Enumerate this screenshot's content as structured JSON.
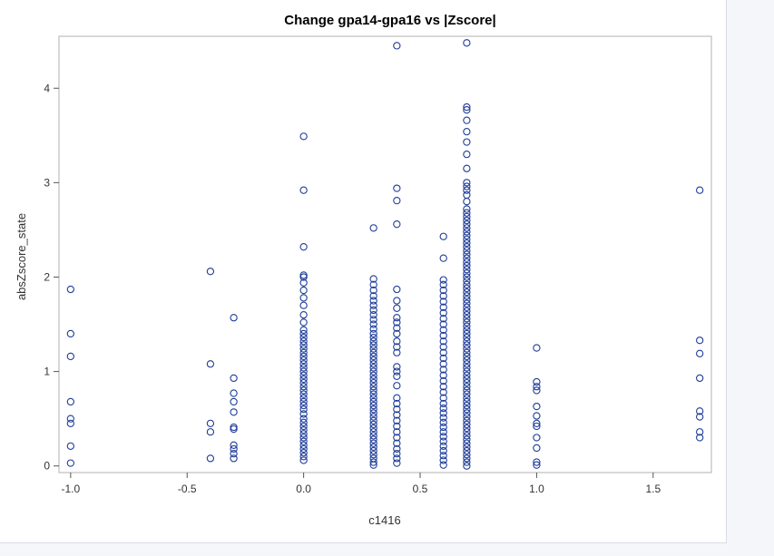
{
  "chart_data": {
    "type": "scatter",
    "title": "Change gpa14-gpa16 vs |Zscore|",
    "xlabel": "c1416",
    "ylabel": "absZscore_state",
    "xlim": [
      -1.05,
      1.75
    ],
    "ylim": [
      -0.07,
      4.55
    ],
    "xticks": [
      -1.0,
      -0.5,
      0.0,
      0.5,
      1.0,
      1.5
    ],
    "xtick_labels": [
      "-1.0",
      "-0.5",
      "0.0",
      "0.5",
      "1.0",
      "1.5"
    ],
    "yticks": [
      0,
      1,
      2,
      3,
      4
    ],
    "ytick_labels": [
      "0",
      "1",
      "2",
      "3",
      "4"
    ],
    "grid": false,
    "marker": "open-circle",
    "marker_color": "#1f3d99",
    "series": [
      {
        "points": [
          [
            -1.0,
            0.03
          ],
          [
            -1.0,
            0.21
          ],
          [
            -1.0,
            0.45
          ],
          [
            -1.0,
            0.5
          ],
          [
            -1.0,
            0.68
          ],
          [
            -1.0,
            1.16
          ],
          [
            -1.0,
            1.4
          ],
          [
            -1.0,
            1.87
          ],
          [
            -0.4,
            0.08
          ],
          [
            -0.4,
            0.36
          ],
          [
            -0.4,
            0.45
          ],
          [
            -0.4,
            1.08
          ],
          [
            -0.4,
            2.06
          ],
          [
            -0.3,
            0.08
          ],
          [
            -0.3,
            0.13
          ],
          [
            -0.3,
            0.18
          ],
          [
            -0.3,
            0.22
          ],
          [
            -0.3,
            0.39
          ],
          [
            -0.3,
            0.41
          ],
          [
            -0.3,
            0.57
          ],
          [
            -0.3,
            0.68
          ],
          [
            -0.3,
            0.77
          ],
          [
            -0.3,
            0.93
          ],
          [
            -0.3,
            1.57
          ],
          [
            0.0,
            0.06
          ],
          [
            0.0,
            0.1
          ],
          [
            0.0,
            0.14
          ],
          [
            0.0,
            0.18
          ],
          [
            0.0,
            0.22
          ],
          [
            0.0,
            0.26
          ],
          [
            0.0,
            0.3
          ],
          [
            0.0,
            0.34
          ],
          [
            0.0,
            0.38
          ],
          [
            0.0,
            0.42
          ],
          [
            0.0,
            0.46
          ],
          [
            0.0,
            0.5
          ],
          [
            0.0,
            0.55
          ],
          [
            0.0,
            0.6
          ],
          [
            0.0,
            0.64
          ],
          [
            0.0,
            0.68
          ],
          [
            0.0,
            0.72
          ],
          [
            0.0,
            0.76
          ],
          [
            0.0,
            0.8
          ],
          [
            0.0,
            0.84
          ],
          [
            0.0,
            0.88
          ],
          [
            0.0,
            0.92
          ],
          [
            0.0,
            0.96
          ],
          [
            0.0,
            1.0
          ],
          [
            0.0,
            1.04
          ],
          [
            0.0,
            1.08
          ],
          [
            0.0,
            1.12
          ],
          [
            0.0,
            1.16
          ],
          [
            0.0,
            1.2
          ],
          [
            0.0,
            1.24
          ],
          [
            0.0,
            1.28
          ],
          [
            0.0,
            1.32
          ],
          [
            0.0,
            1.36
          ],
          [
            0.0,
            1.4
          ],
          [
            0.0,
            1.44
          ],
          [
            0.0,
            1.52
          ],
          [
            0.0,
            1.6
          ],
          [
            0.0,
            1.7
          ],
          [
            0.0,
            1.78
          ],
          [
            0.0,
            1.86
          ],
          [
            0.0,
            1.94
          ],
          [
            0.0,
            2.0
          ],
          [
            0.0,
            2.02
          ],
          [
            0.0,
            2.32
          ],
          [
            0.0,
            2.92
          ],
          [
            0.0,
            3.49
          ],
          [
            0.3,
            0.01
          ],
          [
            0.3,
            0.04
          ],
          [
            0.3,
            0.08
          ],
          [
            0.3,
            0.12
          ],
          [
            0.3,
            0.16
          ],
          [
            0.3,
            0.2
          ],
          [
            0.3,
            0.24
          ],
          [
            0.3,
            0.28
          ],
          [
            0.3,
            0.32
          ],
          [
            0.3,
            0.36
          ],
          [
            0.3,
            0.4
          ],
          [
            0.3,
            0.44
          ],
          [
            0.3,
            0.48
          ],
          [
            0.3,
            0.52
          ],
          [
            0.3,
            0.56
          ],
          [
            0.3,
            0.6
          ],
          [
            0.3,
            0.64
          ],
          [
            0.3,
            0.68
          ],
          [
            0.3,
            0.72
          ],
          [
            0.3,
            0.76
          ],
          [
            0.3,
            0.8
          ],
          [
            0.3,
            0.84
          ],
          [
            0.3,
            0.88
          ],
          [
            0.3,
            0.92
          ],
          [
            0.3,
            0.96
          ],
          [
            0.3,
            1.0
          ],
          [
            0.3,
            1.04
          ],
          [
            0.3,
            1.08
          ],
          [
            0.3,
            1.12
          ],
          [
            0.3,
            1.16
          ],
          [
            0.3,
            1.2
          ],
          [
            0.3,
            1.24
          ],
          [
            0.3,
            1.28
          ],
          [
            0.3,
            1.32
          ],
          [
            0.3,
            1.36
          ],
          [
            0.3,
            1.4
          ],
          [
            0.3,
            1.45
          ],
          [
            0.3,
            1.5
          ],
          [
            0.3,
            1.55
          ],
          [
            0.3,
            1.6
          ],
          [
            0.3,
            1.65
          ],
          [
            0.3,
            1.7
          ],
          [
            0.3,
            1.75
          ],
          [
            0.3,
            1.8
          ],
          [
            0.3,
            1.86
          ],
          [
            0.3,
            1.92
          ],
          [
            0.3,
            1.98
          ],
          [
            0.3,
            2.52
          ],
          [
            0.4,
            0.03
          ],
          [
            0.4,
            0.08
          ],
          [
            0.4,
            0.13
          ],
          [
            0.4,
            0.18
          ],
          [
            0.4,
            0.24
          ],
          [
            0.4,
            0.3
          ],
          [
            0.4,
            0.36
          ],
          [
            0.4,
            0.42
          ],
          [
            0.4,
            0.48
          ],
          [
            0.4,
            0.54
          ],
          [
            0.4,
            0.6
          ],
          [
            0.4,
            0.66
          ],
          [
            0.4,
            0.72
          ],
          [
            0.4,
            0.85
          ],
          [
            0.4,
            0.95
          ],
          [
            0.4,
            1.0
          ],
          [
            0.4,
            1.05
          ],
          [
            0.4,
            1.2
          ],
          [
            0.4,
            1.26
          ],
          [
            0.4,
            1.32
          ],
          [
            0.4,
            1.4
          ],
          [
            0.4,
            1.46
          ],
          [
            0.4,
            1.52
          ],
          [
            0.4,
            1.57
          ],
          [
            0.4,
            1.67
          ],
          [
            0.4,
            1.75
          ],
          [
            0.4,
            1.87
          ],
          [
            0.4,
            2.56
          ],
          [
            0.4,
            2.81
          ],
          [
            0.4,
            2.94
          ],
          [
            0.4,
            4.45
          ],
          [
            0.6,
            0.01
          ],
          [
            0.6,
            0.06
          ],
          [
            0.6,
            0.11
          ],
          [
            0.6,
            0.16
          ],
          [
            0.6,
            0.21
          ],
          [
            0.6,
            0.26
          ],
          [
            0.6,
            0.31
          ],
          [
            0.6,
            0.36
          ],
          [
            0.6,
            0.41
          ],
          [
            0.6,
            0.46
          ],
          [
            0.6,
            0.51
          ],
          [
            0.6,
            0.56
          ],
          [
            0.6,
            0.61
          ],
          [
            0.6,
            0.66
          ],
          [
            0.6,
            0.72
          ],
          [
            0.6,
            0.78
          ],
          [
            0.6,
            0.84
          ],
          [
            0.6,
            0.9
          ],
          [
            0.6,
            0.96
          ],
          [
            0.6,
            1.02
          ],
          [
            0.6,
            1.08
          ],
          [
            0.6,
            1.14
          ],
          [
            0.6,
            1.2
          ],
          [
            0.6,
            1.26
          ],
          [
            0.6,
            1.32
          ],
          [
            0.6,
            1.38
          ],
          [
            0.6,
            1.44
          ],
          [
            0.6,
            1.5
          ],
          [
            0.6,
            1.56
          ],
          [
            0.6,
            1.62
          ],
          [
            0.6,
            1.68
          ],
          [
            0.6,
            1.74
          ],
          [
            0.6,
            1.8
          ],
          [
            0.6,
            1.86
          ],
          [
            0.6,
            1.92
          ],
          [
            0.6,
            1.97
          ],
          [
            0.6,
            2.2
          ],
          [
            0.6,
            2.43
          ],
          [
            0.7,
            0.0
          ],
          [
            0.7,
            0.04
          ],
          [
            0.7,
            0.08
          ],
          [
            0.7,
            0.12
          ],
          [
            0.7,
            0.16
          ],
          [
            0.7,
            0.2
          ],
          [
            0.7,
            0.24
          ],
          [
            0.7,
            0.28
          ],
          [
            0.7,
            0.32
          ],
          [
            0.7,
            0.36
          ],
          [
            0.7,
            0.4
          ],
          [
            0.7,
            0.44
          ],
          [
            0.7,
            0.48
          ],
          [
            0.7,
            0.52
          ],
          [
            0.7,
            0.56
          ],
          [
            0.7,
            0.6
          ],
          [
            0.7,
            0.64
          ],
          [
            0.7,
            0.68
          ],
          [
            0.7,
            0.72
          ],
          [
            0.7,
            0.76
          ],
          [
            0.7,
            0.8
          ],
          [
            0.7,
            0.84
          ],
          [
            0.7,
            0.88
          ],
          [
            0.7,
            0.92
          ],
          [
            0.7,
            0.96
          ],
          [
            0.7,
            1.0
          ],
          [
            0.7,
            1.04
          ],
          [
            0.7,
            1.08
          ],
          [
            0.7,
            1.12
          ],
          [
            0.7,
            1.16
          ],
          [
            0.7,
            1.2
          ],
          [
            0.7,
            1.24
          ],
          [
            0.7,
            1.28
          ],
          [
            0.7,
            1.32
          ],
          [
            0.7,
            1.36
          ],
          [
            0.7,
            1.4
          ],
          [
            0.7,
            1.44
          ],
          [
            0.7,
            1.48
          ],
          [
            0.7,
            1.52
          ],
          [
            0.7,
            1.56
          ],
          [
            0.7,
            1.6
          ],
          [
            0.7,
            1.64
          ],
          [
            0.7,
            1.68
          ],
          [
            0.7,
            1.72
          ],
          [
            0.7,
            1.76
          ],
          [
            0.7,
            1.8
          ],
          [
            0.7,
            1.84
          ],
          [
            0.7,
            1.88
          ],
          [
            0.7,
            1.92
          ],
          [
            0.7,
            1.96
          ],
          [
            0.7,
            2.0
          ],
          [
            0.7,
            2.04
          ],
          [
            0.7,
            2.08
          ],
          [
            0.7,
            2.12
          ],
          [
            0.7,
            2.16
          ],
          [
            0.7,
            2.2
          ],
          [
            0.7,
            2.24
          ],
          [
            0.7,
            2.28
          ],
          [
            0.7,
            2.32
          ],
          [
            0.7,
            2.36
          ],
          [
            0.7,
            2.4
          ],
          [
            0.7,
            2.44
          ],
          [
            0.7,
            2.48
          ],
          [
            0.7,
            2.52
          ],
          [
            0.7,
            2.56
          ],
          [
            0.7,
            2.6
          ],
          [
            0.7,
            2.64
          ],
          [
            0.7,
            2.68
          ],
          [
            0.7,
            2.72
          ],
          [
            0.7,
            2.8
          ],
          [
            0.7,
            2.87
          ],
          [
            0.7,
            2.92
          ],
          [
            0.7,
            2.96
          ],
          [
            0.7,
            3.0
          ],
          [
            0.7,
            3.15
          ],
          [
            0.7,
            3.3
          ],
          [
            0.7,
            3.43
          ],
          [
            0.7,
            3.54
          ],
          [
            0.7,
            3.66
          ],
          [
            0.7,
            3.77
          ],
          [
            0.7,
            3.8
          ],
          [
            0.7,
            4.48
          ],
          [
            1.0,
            0.01
          ],
          [
            1.0,
            0.04
          ],
          [
            1.0,
            0.19
          ],
          [
            1.0,
            0.3
          ],
          [
            1.0,
            0.42
          ],
          [
            1.0,
            0.45
          ],
          [
            1.0,
            0.53
          ],
          [
            1.0,
            0.63
          ],
          [
            1.0,
            0.8
          ],
          [
            1.0,
            0.84
          ],
          [
            1.0,
            0.89
          ],
          [
            1.0,
            1.25
          ],
          [
            1.7,
            0.3
          ],
          [
            1.7,
            0.36
          ],
          [
            1.7,
            0.52
          ],
          [
            1.7,
            0.58
          ],
          [
            1.7,
            0.93
          ],
          [
            1.7,
            1.19
          ],
          [
            1.7,
            1.33
          ],
          [
            1.7,
            2.92
          ]
        ]
      }
    ]
  }
}
